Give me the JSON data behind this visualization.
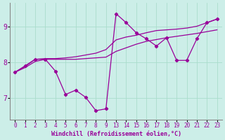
{
  "background_color": "#cceee8",
  "line_color": "#990099",
  "grid_color": "#aaddcc",
  "line2_x": [
    0,
    1,
    2,
    3,
    4,
    5,
    6,
    7,
    8,
    9,
    13,
    14,
    15,
    16,
    17,
    18,
    19,
    20,
    21,
    22,
    23
  ],
  "line2_y": [
    7.72,
    7.9,
    8.08,
    8.08,
    7.75,
    7.1,
    7.22,
    7.02,
    6.65,
    6.7,
    9.35,
    9.1,
    8.82,
    8.65,
    8.45,
    8.68,
    8.05,
    8.05,
    8.65,
    9.1,
    9.2
  ],
  "line1_y": [
    7.72,
    7.85,
    8.02,
    8.08,
    8.08,
    8.08,
    8.08,
    8.1,
    8.12,
    8.14,
    8.3,
    8.4,
    8.5,
    8.58,
    8.63,
    8.68,
    8.72,
    8.76,
    8.8,
    8.85,
    8.9
  ],
  "line3_y": [
    7.72,
    7.88,
    8.08,
    8.1,
    8.1,
    8.12,
    8.15,
    8.2,
    8.25,
    8.35,
    8.62,
    8.7,
    8.75,
    8.82,
    8.88,
    8.9,
    8.92,
    8.95,
    9.0,
    9.1,
    9.2
  ],
  "tick_labels": [
    "0",
    "1",
    "2",
    "3",
    "4",
    "5",
    "6",
    "7",
    "8",
    "9",
    "13",
    "14",
    "15",
    "16",
    "17",
    "18",
    "19",
    "20",
    "21",
    "22",
    "23"
  ],
  "xlabel": "Windchill (Refroidissement éolien,°C)",
  "yticks": [
    7,
    8,
    9
  ],
  "ylim": [
    6.4,
    9.65
  ]
}
